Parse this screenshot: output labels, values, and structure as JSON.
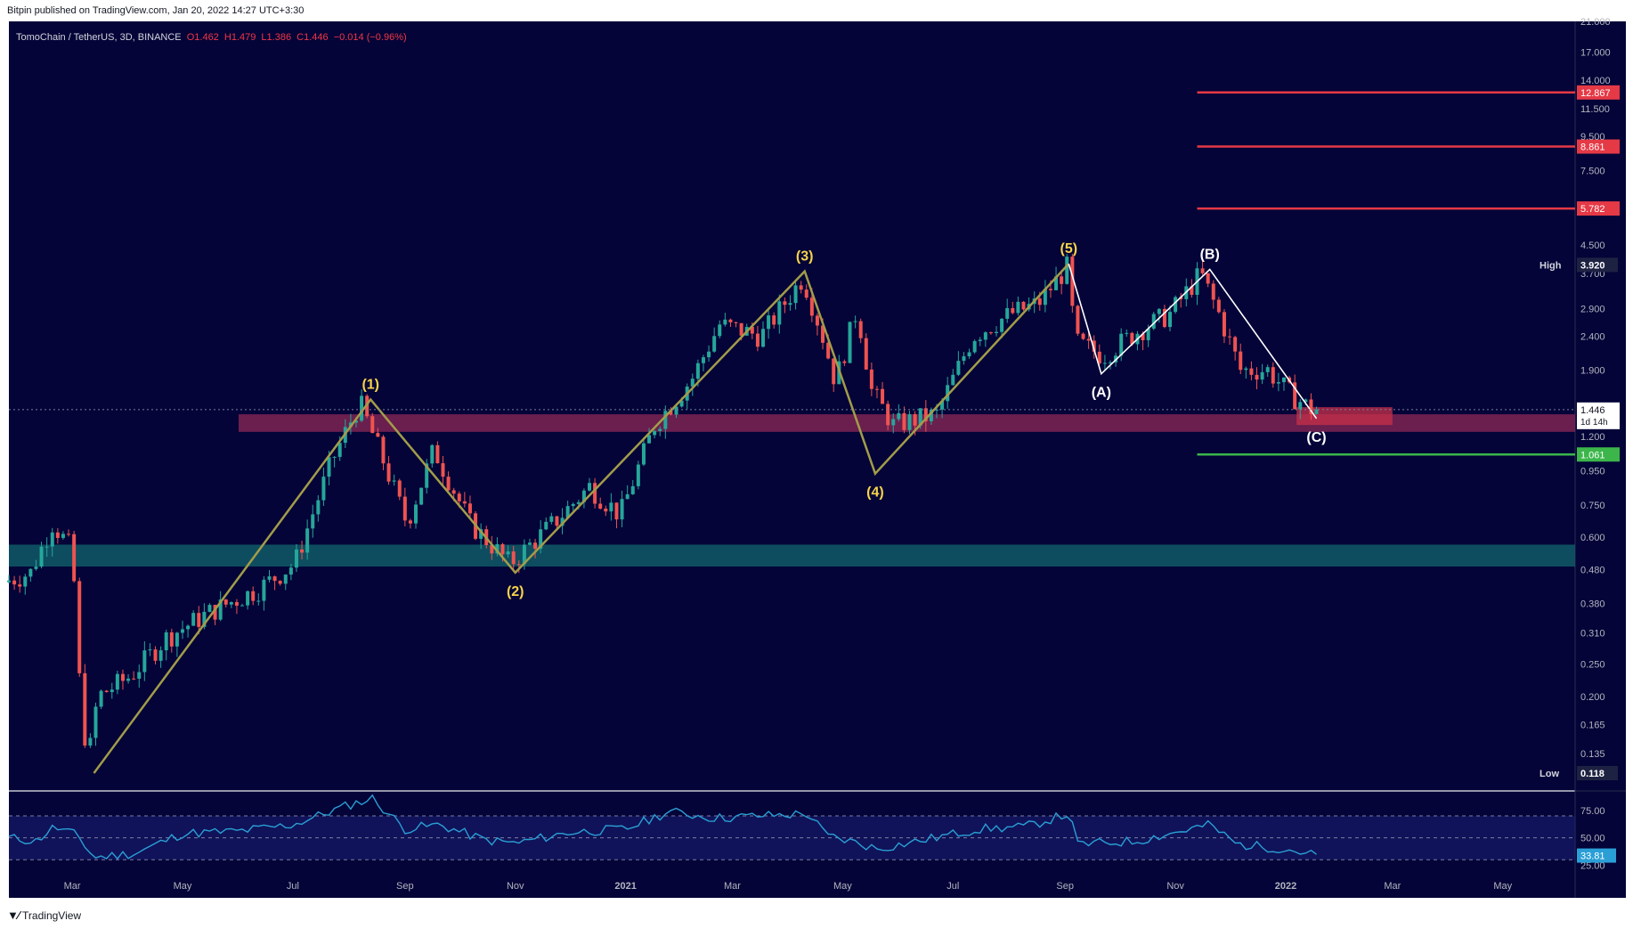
{
  "header": {
    "published": "Bitpin published on TradingView.com, Jan 20, 2022 14:27 UTC+3:30"
  },
  "ticker": {
    "symbol": "TomoChain / TetherUS, 3D, BINANCE",
    "open": "O1.462",
    "high": "H1.479",
    "low": "L1.386",
    "close": "C1.446",
    "change": "−0.014 (−0.96%)"
  },
  "footer": {
    "brand": "TradingView"
  },
  "colors": {
    "background": "#040438",
    "up": "#26a69a",
    "down": "#ef5350",
    "wave": "#a29c4a",
    "correction": "#ffffff",
    "target": "#e53945",
    "support": "#3cb64a",
    "resistance_zone": "#7d2452",
    "support_zone": "#0f5a66",
    "rsi": "#2a9fd6"
  },
  "chart_data": [
    {
      "type": "candlestick",
      "scale": "log",
      "x_range": [
        "2020-01-26",
        "2022-06-10"
      ],
      "ylim": [
        0.105,
        21.0
      ],
      "x_ticks": [
        {
          "date": "2020-03-01",
          "label": "Mar"
        },
        {
          "date": "2020-05-01",
          "label": "May"
        },
        {
          "date": "2020-07-01",
          "label": "Jul"
        },
        {
          "date": "2020-09-01",
          "label": "Sep"
        },
        {
          "date": "2020-11-01",
          "label": "Nov"
        },
        {
          "date": "2021-01-01",
          "label": "2021"
        },
        {
          "date": "2021-03-01",
          "label": "Mar"
        },
        {
          "date": "2021-05-01",
          "label": "May"
        },
        {
          "date": "2021-07-01",
          "label": "Jul"
        },
        {
          "date": "2021-09-01",
          "label": "Sep"
        },
        {
          "date": "2021-11-01",
          "label": "Nov"
        },
        {
          "date": "2022-01-01",
          "label": "2022"
        },
        {
          "date": "2022-03-01",
          "label": "Mar"
        },
        {
          "date": "2022-05-01",
          "label": "May"
        }
      ],
      "y_ticks": [
        "21.000",
        "17.000",
        "14.000",
        "11.500",
        "9.500",
        "7.500",
        "4.500",
        "3.700",
        "2.900",
        "2.400",
        "1.900",
        "1.200",
        "0.950",
        "0.750",
        "0.600",
        "0.480",
        "0.380",
        "0.310",
        "0.250",
        "0.200",
        "0.165",
        "0.135"
      ],
      "price_series": [
        {
          "date": "2020-01-26",
          "price": 0.44
        },
        {
          "date": "2020-02-10",
          "price": 0.47
        },
        {
          "date": "2020-02-22",
          "price": 0.66
        },
        {
          "date": "2020-03-04",
          "price": 0.55
        },
        {
          "date": "2020-03-09",
          "price": 0.18
        },
        {
          "date": "2020-03-13",
          "price": 0.13
        },
        {
          "date": "2020-03-18",
          "price": 0.2
        },
        {
          "date": "2020-04-05",
          "price": 0.23
        },
        {
          "date": "2020-04-25",
          "price": 0.3
        },
        {
          "date": "2020-05-20",
          "price": 0.36
        },
        {
          "date": "2020-06-15",
          "price": 0.42
        },
        {
          "date": "2020-07-05",
          "price": 0.5
        },
        {
          "date": "2020-07-25",
          "price": 1.0
        },
        {
          "date": "2020-08-10",
          "price": 1.52
        },
        {
          "date": "2020-08-22",
          "price": 1.05
        },
        {
          "date": "2020-09-05",
          "price": 0.66
        },
        {
          "date": "2020-09-20",
          "price": 1.1
        },
        {
          "date": "2020-10-10",
          "price": 0.66
        },
        {
          "date": "2020-11-01",
          "price": 0.5
        },
        {
          "date": "2020-11-25",
          "price": 0.66
        },
        {
          "date": "2020-12-15",
          "price": 0.85
        },
        {
          "date": "2021-01-01",
          "price": 0.7
        },
        {
          "date": "2021-01-20",
          "price": 1.3
        },
        {
          "date": "2021-02-10",
          "price": 1.8
        },
        {
          "date": "2021-02-25",
          "price": 2.6
        },
        {
          "date": "2021-03-20",
          "price": 2.4
        },
        {
          "date": "2021-04-12",
          "price": 3.6
        },
        {
          "date": "2021-04-22",
          "price": 2.5
        },
        {
          "date": "2021-04-30",
          "price": 1.75
        },
        {
          "date": "2021-05-12",
          "price": 2.9
        },
        {
          "date": "2021-05-20",
          "price": 1.65
        },
        {
          "date": "2021-06-01",
          "price": 1.3
        },
        {
          "date": "2021-06-25",
          "price": 1.4
        },
        {
          "date": "2021-07-15",
          "price": 2.4
        },
        {
          "date": "2021-08-05",
          "price": 2.8
        },
        {
          "date": "2021-08-20",
          "price": 3.0
        },
        {
          "date": "2021-09-05",
          "price": 3.85
        },
        {
          "date": "2021-09-10",
          "price": 2.3
        },
        {
          "date": "2021-09-25",
          "price": 2.1
        },
        {
          "date": "2021-10-15",
          "price": 2.5
        },
        {
          "date": "2021-11-01",
          "price": 2.8
        },
        {
          "date": "2021-11-18",
          "price": 3.7
        },
        {
          "date": "2021-11-28",
          "price": 2.8
        },
        {
          "date": "2021-12-10",
          "price": 1.9
        },
        {
          "date": "2021-12-25",
          "price": 1.9
        },
        {
          "date": "2022-01-07",
          "price": 1.6
        },
        {
          "date": "2022-01-18",
          "price": 1.45
        }
      ],
      "wave_points": [
        {
          "date": "2020-03-13",
          "price": 0.118,
          "label": ""
        },
        {
          "date": "2020-08-13",
          "price": 1.55,
          "label": "(1)"
        },
        {
          "date": "2020-11-01",
          "price": 0.47,
          "label": "(2)"
        },
        {
          "date": "2021-04-10",
          "price": 3.75,
          "label": "(3)"
        },
        {
          "date": "2021-05-19",
          "price": 0.93,
          "label": "(4)"
        },
        {
          "date": "2021-09-03",
          "price": 3.95,
          "label": "(5)"
        }
      ],
      "correction_points": [
        {
          "date": "2021-09-03",
          "price": 3.95,
          "label": ""
        },
        {
          "date": "2021-09-21",
          "price": 1.85,
          "label": "(A)"
        },
        {
          "date": "2021-11-20",
          "price": 3.8,
          "label": "(B)"
        },
        {
          "date": "2022-01-18",
          "price": 1.36,
          "label": "(C)"
        }
      ],
      "zones": [
        {
          "name": "resistance",
          "from_date": "2020-06-01",
          "to_date": "2022-06-10",
          "low": 1.24,
          "high": 1.4
        },
        {
          "name": "support",
          "from_date": "2020-01-26",
          "to_date": "2022-06-10",
          "low": 0.49,
          "high": 0.57
        },
        {
          "name": "target",
          "from_date": "2022-01-07",
          "to_date": "2022-03-01",
          "low": 1.3,
          "high": 1.47
        }
      ],
      "levels": [
        {
          "value": 12.867,
          "label": "12.867",
          "kind": "target"
        },
        {
          "value": 8.861,
          "label": "8.861",
          "kind": "target"
        },
        {
          "value": 5.782,
          "label": "5.782",
          "kind": "target"
        },
        {
          "value": 1.061,
          "label": "1.061",
          "kind": "support"
        }
      ],
      "markers": [
        {
          "name": "High",
          "value": 3.92,
          "label": "3.920"
        },
        {
          "name": "Low",
          "value": 0.118,
          "label": "0.118"
        }
      ],
      "last_price": {
        "value": 1.446,
        "label": "1.446",
        "countdown": "1d 14h"
      }
    },
    {
      "type": "line",
      "title": "",
      "ylim": [
        18,
        92
      ],
      "y_ticks": [
        "75.00",
        "50.00",
        "25.00"
      ],
      "band": [
        30,
        70
      ],
      "last_value": {
        "value": 33.81,
        "label": "33.81"
      },
      "series": [
        {
          "date": "2020-01-26",
          "value": 50
        },
        {
          "date": "2020-02-10",
          "value": 47
        },
        {
          "date": "2020-02-20",
          "value": 60
        },
        {
          "date": "2020-03-04",
          "value": 52
        },
        {
          "date": "2020-03-13",
          "value": 32
        },
        {
          "date": "2020-04-05",
          "value": 36
        },
        {
          "date": "2020-05-01",
          "value": 54
        },
        {
          "date": "2020-06-01",
          "value": 56
        },
        {
          "date": "2020-07-01",
          "value": 62
        },
        {
          "date": "2020-08-01",
          "value": 80
        },
        {
          "date": "2020-08-14",
          "value": 86
        },
        {
          "date": "2020-09-01",
          "value": 58
        },
        {
          "date": "2020-09-20",
          "value": 62
        },
        {
          "date": "2020-10-15",
          "value": 48
        },
        {
          "date": "2020-11-01",
          "value": 45
        },
        {
          "date": "2020-12-01",
          "value": 55
        },
        {
          "date": "2021-01-01",
          "value": 58
        },
        {
          "date": "2021-01-25",
          "value": 74
        },
        {
          "date": "2021-02-20",
          "value": 68
        },
        {
          "date": "2021-03-15",
          "value": 70
        },
        {
          "date": "2021-04-12",
          "value": 72
        },
        {
          "date": "2021-04-22",
          "value": 52
        },
        {
          "date": "2021-05-10",
          "value": 45
        },
        {
          "date": "2021-05-20",
          "value": 40
        },
        {
          "date": "2021-06-15",
          "value": 48
        },
        {
          "date": "2021-07-15",
          "value": 58
        },
        {
          "date": "2021-08-10",
          "value": 60
        },
        {
          "date": "2021-09-03",
          "value": 72
        },
        {
          "date": "2021-09-08",
          "value": 44
        },
        {
          "date": "2021-10-10",
          "value": 47
        },
        {
          "date": "2021-11-01",
          "value": 55
        },
        {
          "date": "2021-11-20",
          "value": 62
        },
        {
          "date": "2021-12-05",
          "value": 44
        },
        {
          "date": "2022-01-01",
          "value": 40
        },
        {
          "date": "2022-01-18",
          "value": 34
        }
      ]
    }
  ]
}
